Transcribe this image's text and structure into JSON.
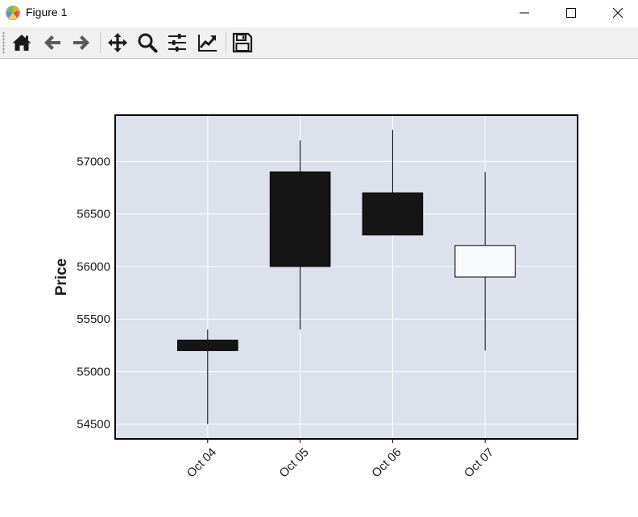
{
  "window": {
    "title": "Figure 1",
    "buttons": [
      "minimize-icon",
      "maximize-icon",
      "close-icon"
    ]
  },
  "toolbar": {
    "items": [
      "home-icon",
      "back-icon",
      "forward-icon",
      "pan-icon",
      "zoom-icon",
      "configure-subplots-icon",
      "edit-axis-icon",
      "save-icon"
    ]
  },
  "colors": {
    "plot_background": "#dce1ec",
    "grid": "#ffffff",
    "down_candle": "#151515",
    "up_candle": "#f8f9fb",
    "frame": "#000000"
  },
  "chart_data": {
    "type": "candlestick",
    "title": "",
    "xlabel": "",
    "ylabel": "Price",
    "categories": [
      "Oct 04",
      "Oct 05",
      "Oct 06",
      "Oct 07"
    ],
    "candles": [
      {
        "date": "Oct 04",
        "open": 55300,
        "high": 55400,
        "low": 54500,
        "close": 55200
      },
      {
        "date": "Oct 05",
        "open": 56900,
        "high": 57200,
        "low": 55400,
        "close": 56000
      },
      {
        "date": "Oct 06",
        "open": 56700,
        "high": 57300,
        "low": 56300,
        "close": 56300
      },
      {
        "date": "Oct 07",
        "open": 55900,
        "high": 56900,
        "low": 55200,
        "close": 56200
      }
    ],
    "yticks": [
      54500,
      55000,
      55500,
      56000,
      56500,
      57000
    ],
    "ylim": [
      54360,
      57440
    ],
    "xlim": [
      -1,
      4
    ],
    "grid": true,
    "legend": "none"
  }
}
